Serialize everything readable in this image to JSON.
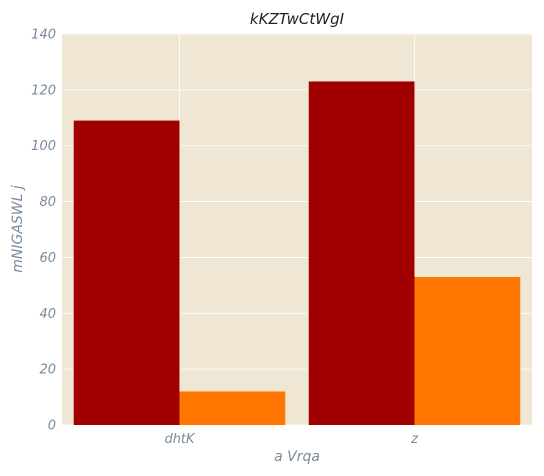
{
  "chart_data": {
    "type": "bar",
    "title": "kKZTwCtWgI",
    "xlabel": "a Vrqa",
    "ylabel": "mNIGASWL j",
    "categories": [
      "dhtK",
      "z"
    ],
    "series": [
      {
        "values": [
          109,
          123
        ],
        "color": "#a00000"
      },
      {
        "values": [
          12,
          53
        ],
        "color": "#ff7700"
      }
    ],
    "ylim": [
      0,
      140
    ],
    "yticks": [
      0,
      20,
      40,
      60,
      80,
      100,
      120,
      140
    ],
    "grid": true,
    "background": "#efe6d3",
    "grid_color": "#ffffff",
    "legend": "none"
  }
}
